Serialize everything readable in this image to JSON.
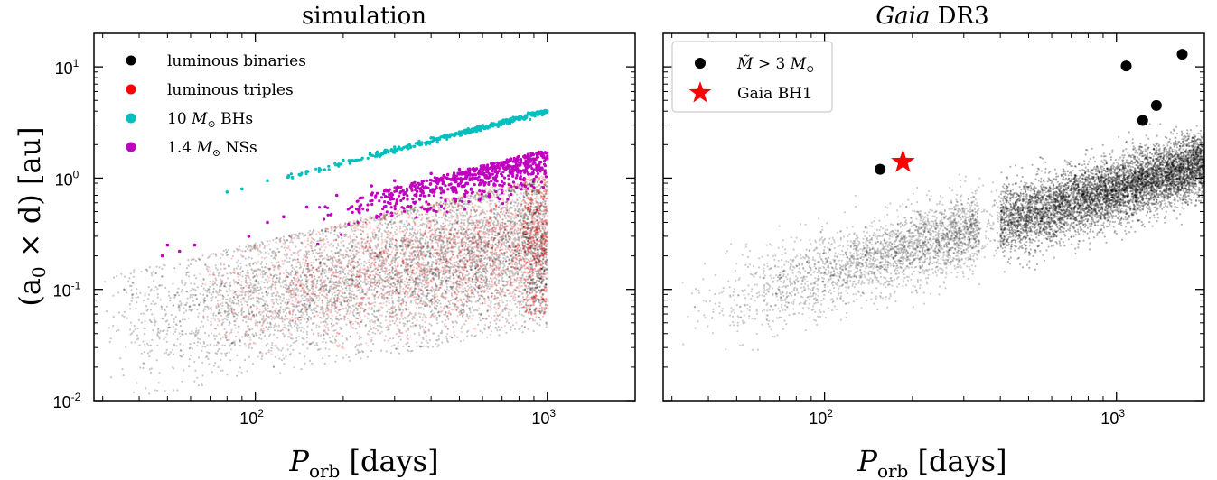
{
  "chart_data": [
    {
      "type": "scatter",
      "title": "simulation",
      "xlabel": "P_orb [days]",
      "ylabel": "(a_0 × d) [au]",
      "xscale": "log",
      "yscale": "log",
      "xlim": [
        28,
        2000
      ],
      "ylim": [
        0.01,
        20
      ],
      "x_ticks": [
        {
          "value": 100,
          "base": "10",
          "exp": "2"
        },
        {
          "value": 1000,
          "base": "10",
          "exp": "3"
        }
      ],
      "y_ticks": [
        {
          "value": 10,
          "base": "10",
          "exp": "1"
        },
        {
          "value": 1,
          "base": "10",
          "exp": "0"
        },
        {
          "value": 0.1,
          "base": "10",
          "exp": "-1"
        },
        {
          "value": 0.01,
          "base": "10",
          "exp": "-2"
        }
      ],
      "legend_position": "top-left",
      "series": [
        {
          "name": "luminous binaries",
          "color": "#000000",
          "kind": "dense cloud",
          "x_range": [
            30,
            1000
          ],
          "y_lower": [
            0.012,
            0.06
          ],
          "y_upper": [
            0.13,
            1.0
          ],
          "points_sampled": [
            [
              40,
              0.03
            ],
            [
              100,
              0.07
            ],
            [
              250,
              0.15
            ],
            [
              500,
              0.2
            ],
            [
              1000,
              0.3
            ]
          ]
        },
        {
          "name": "luminous triples",
          "color": "#ff0000",
          "kind": "dense cloud",
          "x_range": [
            50,
            1000
          ],
          "y_lower": [
            0.015,
            0.05
          ],
          "y_upper": [
            0.12,
            1.1
          ],
          "points_sampled": [
            [
              150,
              0.15
            ],
            [
              300,
              0.25
            ],
            [
              600,
              0.35
            ],
            [
              1000,
              0.5
            ]
          ]
        },
        {
          "name": "10 M_⊙ BHs",
          "color": "#00bfbf",
          "kind": "tight band",
          "points": [
            [
              80,
              0.75
            ],
            [
              90,
              0.8
            ],
            [
              110,
              0.95
            ],
            [
              130,
              1.05
            ],
            [
              150,
              1.15
            ],
            [
              200,
              1.45
            ],
            [
              300,
              1.9
            ],
            [
              400,
              2.3
            ],
            [
              500,
              2.6
            ],
            [
              600,
              2.9
            ],
            [
              700,
              3.2
            ],
            [
              800,
              3.5
            ],
            [
              900,
              3.75
            ],
            [
              1000,
              4.0
            ]
          ]
        },
        {
          "name": "1.4 M_⊙ NSs",
          "color": "#bf00bf",
          "kind": "band",
          "points": [
            [
              48,
              0.2
            ],
            [
              50,
              0.25
            ],
            [
              55,
              0.22
            ],
            [
              62,
              0.25
            ],
            [
              95,
              0.3
            ],
            [
              110,
              0.4
            ],
            [
              125,
              0.45
            ],
            [
              150,
              0.55
            ],
            [
              190,
              0.7
            ],
            [
              250,
              0.85
            ],
            [
              300,
              0.95
            ],
            [
              400,
              1.1
            ],
            [
              500,
              1.2
            ],
            [
              700,
              1.35
            ],
            [
              1000,
              1.5
            ]
          ]
        }
      ]
    },
    {
      "type": "scatter",
      "title_italic": "Gaia",
      "title_rest": " DR3",
      "xlabel": "P_orb [days]",
      "xscale": "log",
      "yscale": "log",
      "xlim": [
        28,
        2000
      ],
      "ylim": [
        0.01,
        20
      ],
      "x_ticks": [
        {
          "value": 100,
          "base": "10",
          "exp": "2"
        },
        {
          "value": 1000,
          "base": "10",
          "exp": "3"
        }
      ],
      "legend_position": "top-left",
      "series": [
        {
          "name": "M̃ > 3 M_⊙",
          "color": "#000000",
          "marker": "circle",
          "points": [
            [
              155,
              1.2
            ],
            [
              1080,
              10.2
            ],
            [
              1230,
              3.3
            ],
            [
              1370,
              4.5
            ],
            [
              1680,
              13
            ]
          ]
        },
        {
          "name": "Gaia BH1",
          "color": "#ff0000",
          "marker": "star",
          "points": [
            [
              185.6,
              1.4
            ]
          ]
        },
        {
          "name": "",
          "color": "#000000",
          "kind": "dense cloud (gap near 370 days)",
          "x_range": [
            30,
            2000
          ],
          "points_sampled": [
            [
              60,
              0.1
            ],
            [
              150,
              0.2
            ],
            [
              250,
              0.3
            ],
            [
              500,
              0.4
            ],
            [
              1000,
              0.8
            ],
            [
              2000,
              1.2
            ]
          ]
        }
      ]
    }
  ],
  "labels": {
    "left_title": "simulation",
    "right_title_italic": "Gaia",
    "right_title_rest": " DR3",
    "xlabel_P": "P",
    "xlabel_sub": "orb",
    "xlabel_unit": "[days]",
    "ylabel_main": "(a",
    "ylabel_sub": "0",
    "ylabel_rest": " × d) [au]",
    "legend_left": [
      {
        "num": "",
        "math": "",
        "text": "luminous binaries"
      },
      {
        "num": "",
        "math": "",
        "text": "luminous triples"
      },
      {
        "num": "10 ",
        "math": "M",
        "text": " BHs"
      },
      {
        "num": "1.4 ",
        "math": "M",
        "text": " NSs"
      }
    ],
    "legend_right": [
      {
        "math": "M̃",
        "text": " > 3 ",
        "math2": "M"
      },
      {
        "text": "Gaia BH1"
      }
    ],
    "sun_symbol": "⊙"
  }
}
